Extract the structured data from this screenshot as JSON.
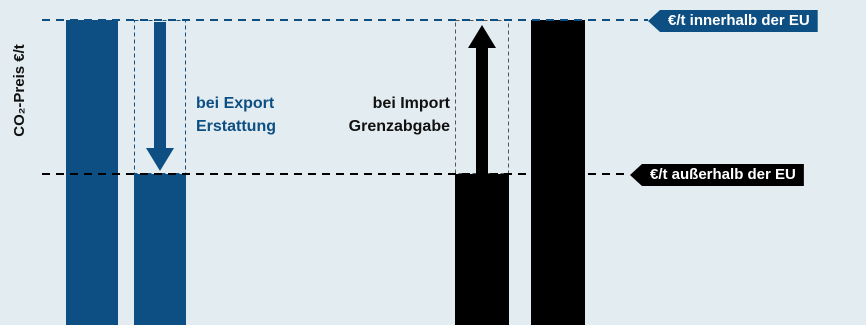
{
  "y_axis": {
    "label": "CO₂-Preis €/t"
  },
  "levels": {
    "inside_eu": "€/t innerhalb der EU",
    "outside_eu": "€/t außerhalb der EU"
  },
  "export": {
    "line1": "bei Export",
    "line2": "Erstattung"
  },
  "import": {
    "line1": "bei Import",
    "line2": "Grenzabgabe"
  },
  "colors": {
    "eu_blue": "#0d4f82",
    "black": "#000000",
    "background": "#e3ecf0"
  }
}
